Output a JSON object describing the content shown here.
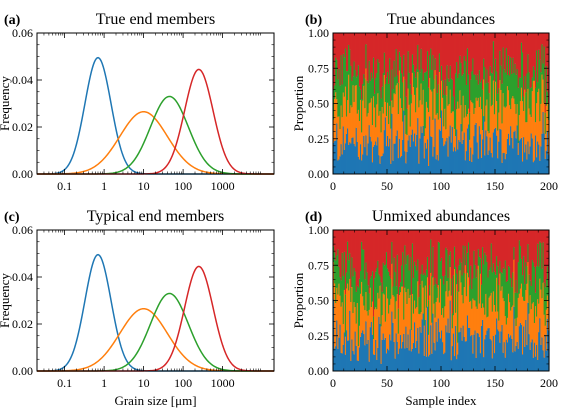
{
  "colors": {
    "blue": "#1f77b4",
    "orange": "#ff7f0e",
    "green": "#2ca02c",
    "red": "#d62728"
  },
  "chart_data": [
    {
      "type": "line",
      "label": "(a)",
      "title": "True end members",
      "xlabel": "",
      "ylabel": "Frequency",
      "xscale": "log",
      "xlim": [
        0.02,
        20000
      ],
      "ylim": [
        0,
        0.06
      ],
      "xticks": [
        "0.1",
        "1",
        "10",
        "100",
        "1000"
      ],
      "yticks": [
        "0.00",
        "0.02",
        "0.04",
        "0.06"
      ],
      "series": [
        {
          "color": "blue",
          "peak_x": 0.7,
          "peak_y": 0.0495,
          "log10_sigma": 0.33
        },
        {
          "color": "orange",
          "peak_x": 10,
          "peak_y": 0.0265,
          "log10_sigma": 0.6
        },
        {
          "color": "green",
          "peak_x": 45,
          "peak_y": 0.033,
          "log10_sigma": 0.48
        },
        {
          "color": "red",
          "peak_x": 250,
          "peak_y": 0.0445,
          "log10_sigma": 0.36
        }
      ]
    },
    {
      "type": "area",
      "label": "(b)",
      "title": "True abundances",
      "xlabel": "",
      "ylabel": "Proportion",
      "xlim": [
        0,
        200
      ],
      "ylim": [
        0,
        1
      ],
      "xticks": [
        "0",
        "50",
        "100",
        "150",
        "200"
      ],
      "yticks": [
        "0.00",
        "0.25",
        "0.50",
        "0.75",
        "1.00"
      ],
      "stack_order": [
        "blue",
        "orange",
        "green",
        "red"
      ],
      "mean_fractions": [
        0.22,
        0.28,
        0.22,
        0.28
      ]
    },
    {
      "type": "line",
      "label": "(c)",
      "title": "Typical end members",
      "xlabel": "Grain size [μm]",
      "ylabel": "Frequency",
      "xscale": "log",
      "xlim": [
        0.02,
        20000
      ],
      "ylim": [
        0,
        0.06
      ],
      "xticks": [
        "0.1",
        "1",
        "10",
        "100",
        "1000"
      ],
      "yticks": [
        "0.00",
        "0.02",
        "0.04",
        "0.06"
      ],
      "series": [
        {
          "color": "blue",
          "peak_x": 0.7,
          "peak_y": 0.0495,
          "log10_sigma": 0.33
        },
        {
          "color": "orange",
          "peak_x": 10,
          "peak_y": 0.0265,
          "log10_sigma": 0.6
        },
        {
          "color": "green",
          "peak_x": 45,
          "peak_y": 0.033,
          "log10_sigma": 0.48
        },
        {
          "color": "red",
          "peak_x": 250,
          "peak_y": 0.0445,
          "log10_sigma": 0.36
        }
      ]
    },
    {
      "type": "area",
      "label": "(d)",
      "title": "Unmixed abundances",
      "xlabel": "Sample index",
      "ylabel": "Proportion",
      "xlim": [
        0,
        200
      ],
      "ylim": [
        0,
        1
      ],
      "xticks": [
        "0",
        "50",
        "100",
        "150",
        "200"
      ],
      "yticks": [
        "0.00",
        "0.25",
        "0.50",
        "0.75",
        "1.00"
      ],
      "stack_order": [
        "blue",
        "orange",
        "green",
        "red"
      ],
      "mean_fractions": [
        0.22,
        0.28,
        0.22,
        0.28
      ]
    }
  ]
}
